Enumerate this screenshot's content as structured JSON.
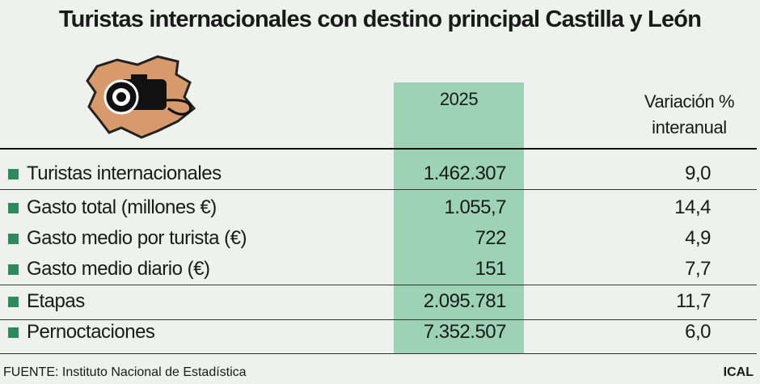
{
  "title": "Turistas internacionales con destino principal Castilla y León",
  "table": {
    "headers": [
      "2025",
      "Variación % interanual"
    ],
    "rows": [
      [
        "Turistas internacionales",
        "1.462.307",
        "9,0"
      ],
      [
        "Gasto total (millones €)",
        "1.055,7",
        "14,4"
      ],
      [
        "Gasto medio por turista (€)",
        "722",
        "4,9"
      ],
      [
        "Gasto medio diario (€)",
        "151",
        "7,7"
      ],
      [
        "Etapas",
        "2.095.781",
        "11,7"
      ],
      [
        "Pernoctaciones",
        "7.352.507",
        "6,0"
      ]
    ]
  },
  "footer": {
    "source": "FUENTE: Instituto Nacional de Estadística",
    "credit": "ICAL"
  }
}
